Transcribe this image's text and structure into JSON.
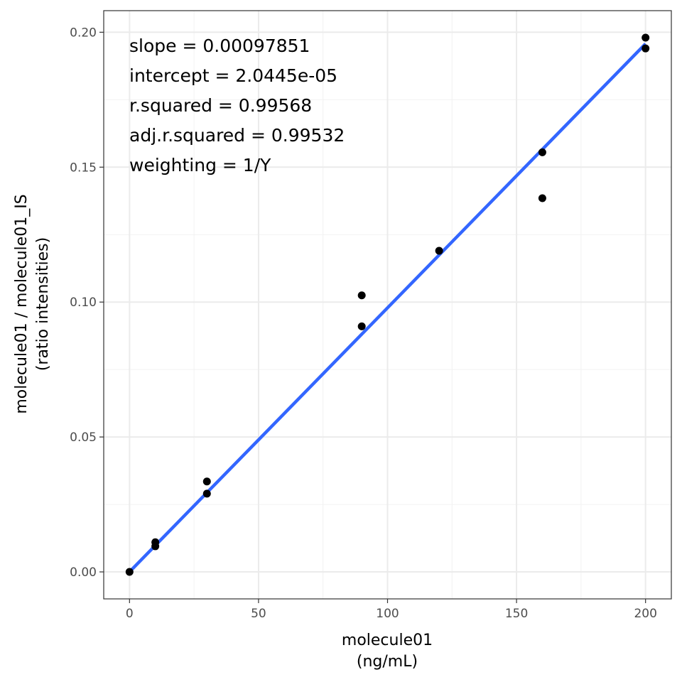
{
  "chart_data": {
    "type": "scatter",
    "xlabel": [
      "molecule01",
      "(ng/mL)"
    ],
    "ylabel": [
      "molecule01 / molecule01_IS",
      "(ratio intensities)"
    ],
    "xlim": [
      -10,
      210
    ],
    "ylim": [
      -0.01,
      0.208
    ],
    "x_ticks": [
      0,
      50,
      100,
      150,
      200
    ],
    "x_tick_labels": [
      "0",
      "50",
      "100",
      "150",
      "200"
    ],
    "y_ticks": [
      0,
      0.05,
      0.1,
      0.15,
      0.2
    ],
    "y_tick_labels": [
      "0.00",
      "0.05",
      "0.10",
      "0.15",
      "0.20"
    ],
    "x_minor_ticks": [
      25,
      75,
      125,
      175
    ],
    "y_minor_ticks": [
      0.025,
      0.075,
      0.125,
      0.175
    ],
    "grid": true,
    "points": [
      {
        "x": 0,
        "y": 0.0
      },
      {
        "x": 10,
        "y": 0.011
      },
      {
        "x": 10,
        "y": 0.0095
      },
      {
        "x": 30,
        "y": 0.0335
      },
      {
        "x": 30,
        "y": 0.029
      },
      {
        "x": 90,
        "y": 0.1025
      },
      {
        "x": 90,
        "y": 0.091
      },
      {
        "x": 120,
        "y": 0.119
      },
      {
        "x": 160,
        "y": 0.1555
      },
      {
        "x": 160,
        "y": 0.1385
      },
      {
        "x": 200,
        "y": 0.198
      },
      {
        "x": 200,
        "y": 0.194
      }
    ],
    "fit_line": {
      "x": [
        0,
        200
      ],
      "y": [
        2.04e-05,
        0.1957224
      ],
      "color": "#3366ff"
    },
    "annotations": [
      "slope = 0.00097851",
      "intercept = 2.0445e-05",
      "r.squared = 0.99568",
      "adj.r.squared = 0.99532",
      "weighting = 1/Y"
    ],
    "colors": {
      "points": "#000000",
      "grid_major": "#ebebeb",
      "grid_minor": "#f2f2f2",
      "panel_border": "#333333"
    }
  }
}
